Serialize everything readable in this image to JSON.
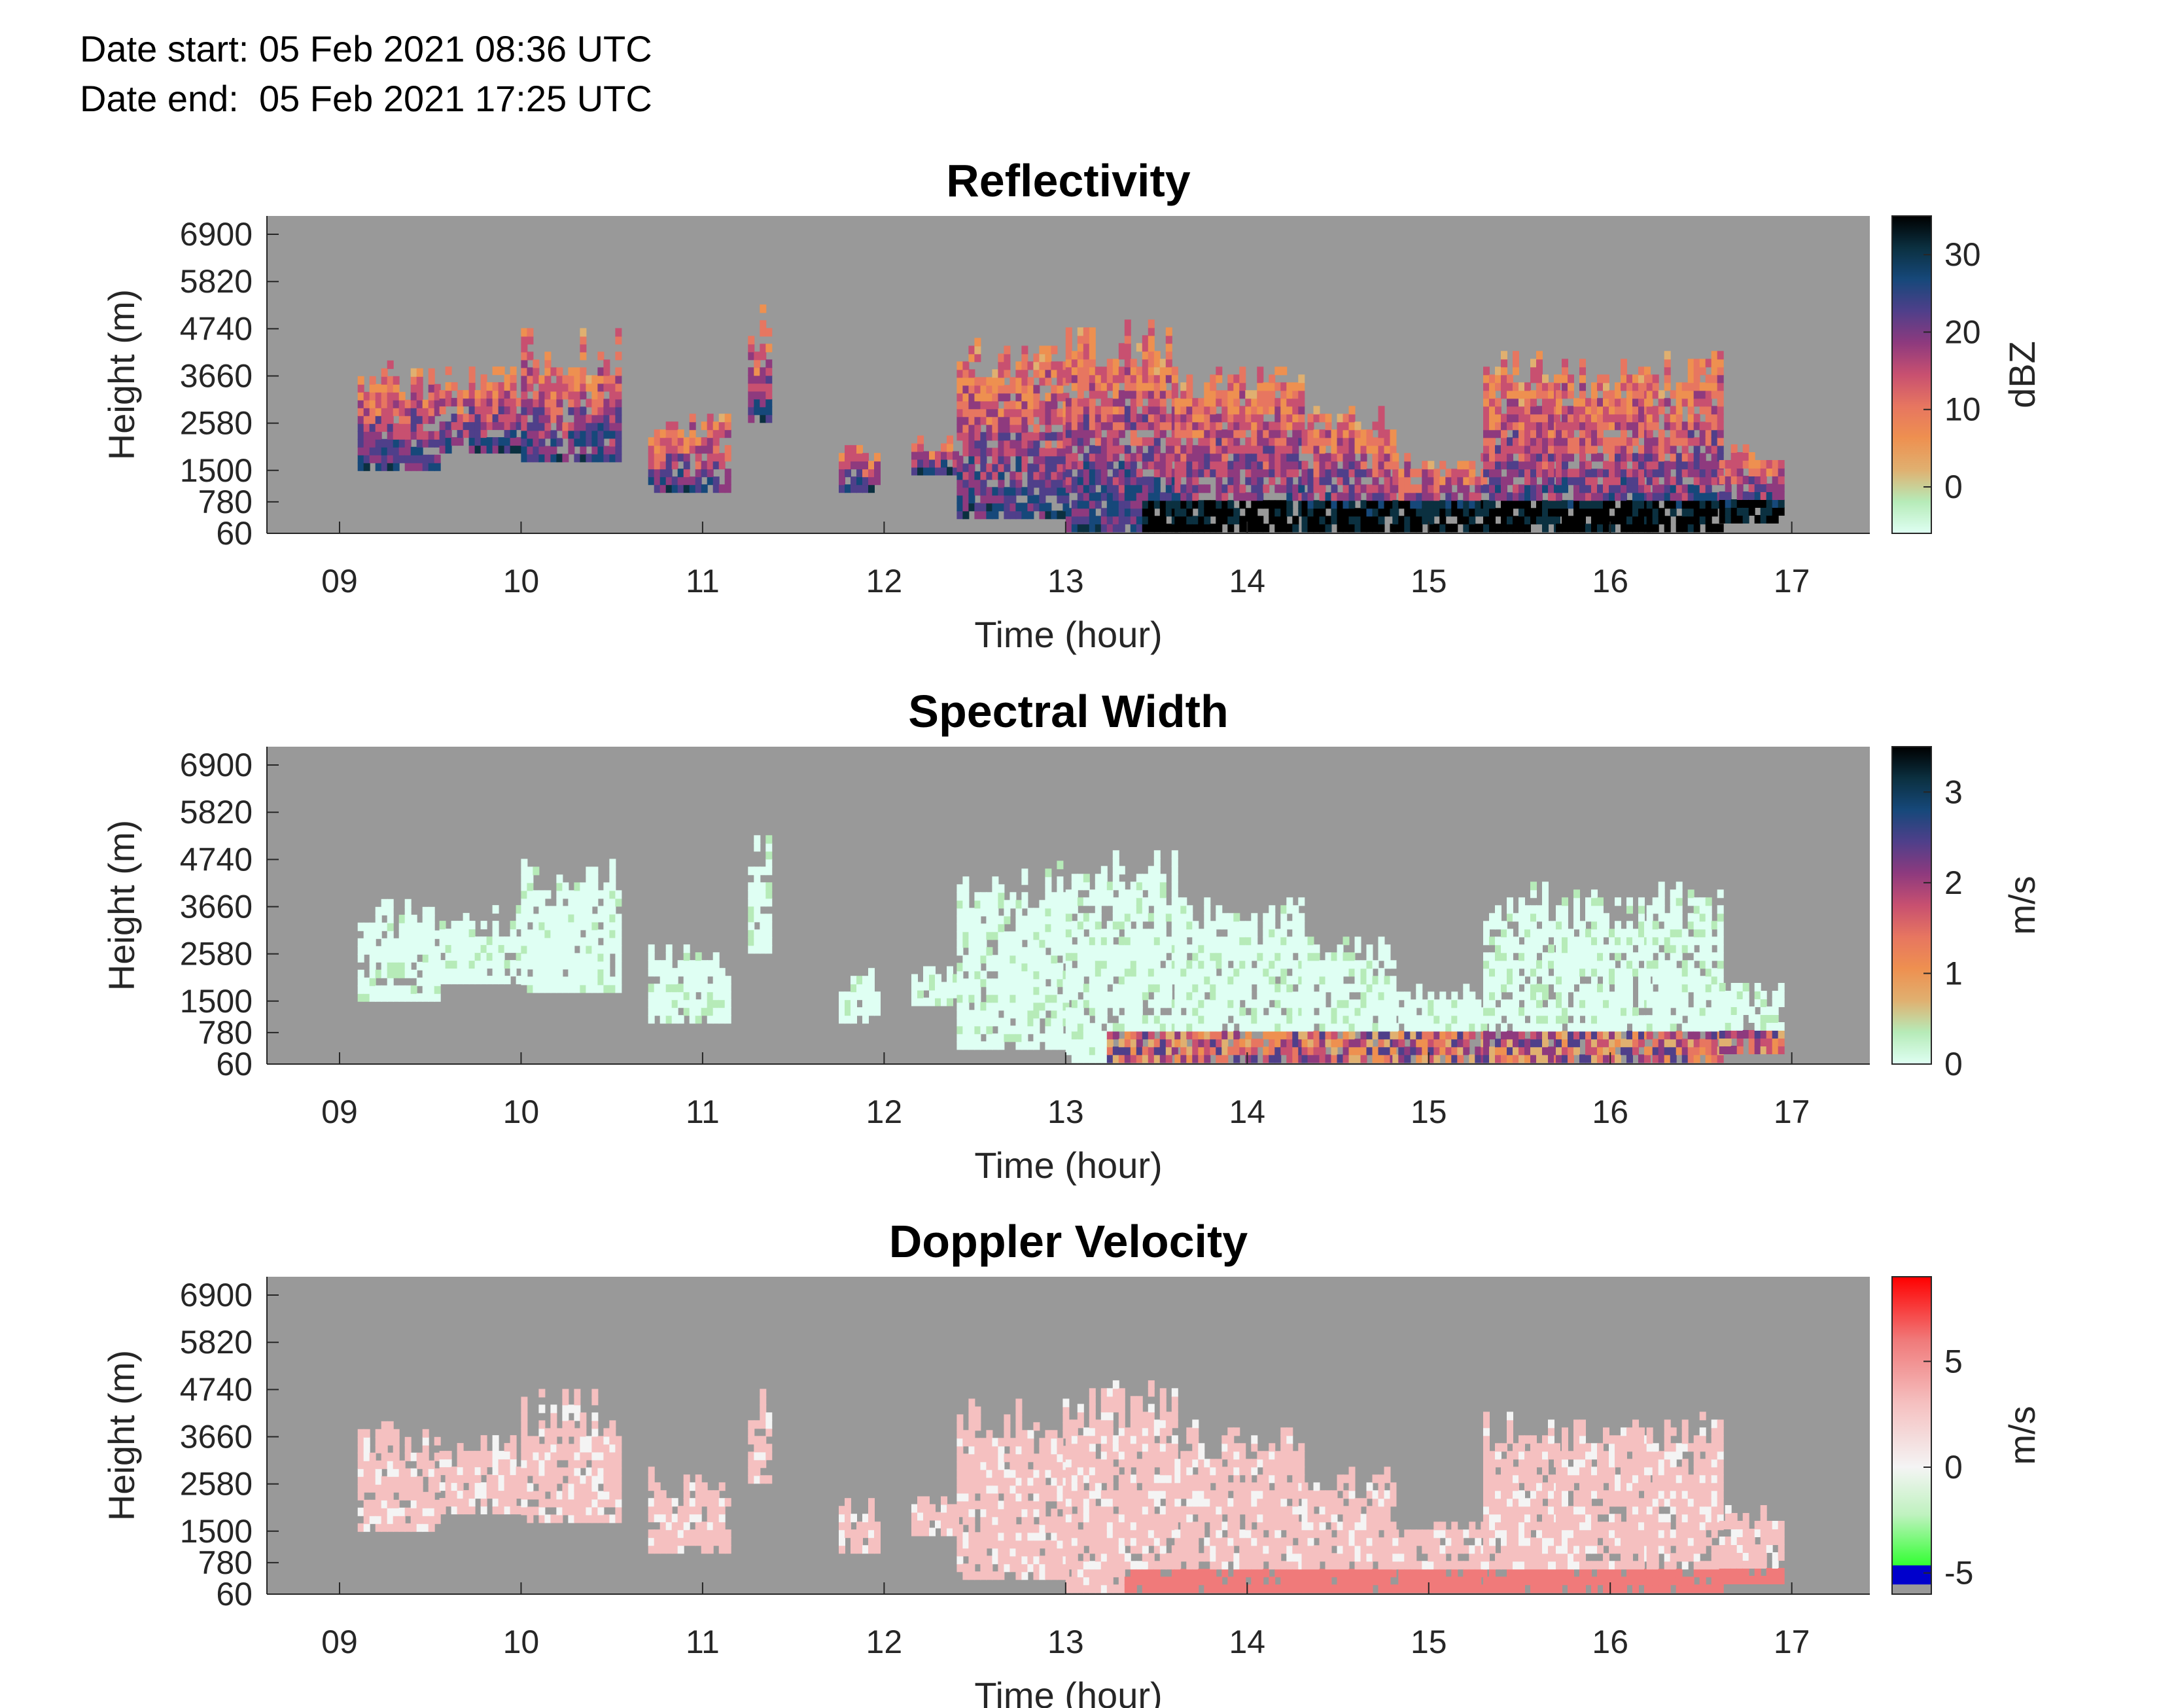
{
  "header": {
    "date_start": "Date start: 05 Feb 2021 08:36 UTC",
    "date_end": "Date end:  05 Feb 2021 17:25 UTC"
  },
  "chart_data": [
    {
      "type": "heatmap",
      "title": "Reflectivity",
      "xlabel": "Time (hour)",
      "ylabel": "Height (m)",
      "xlim": [
        8.6,
        17.43
      ],
      "x_ticks": [
        9,
        10,
        11,
        12,
        13,
        14,
        15,
        16,
        17
      ],
      "x_tick_labels": [
        "09",
        "10",
        "11",
        "12",
        "13",
        "14",
        "15",
        "16",
        "17"
      ],
      "ylim": [
        60,
        7320
      ],
      "y_ticks": [
        60,
        780,
        1500,
        2580,
        3660,
        4740,
        5820,
        6900
      ],
      "y_tick_labels": [
        "60",
        "780",
        "1500",
        "2580",
        "3660",
        "4740",
        "5820",
        "6900"
      ],
      "colorbar": {
        "label": "dBZ",
        "range": [
          -6,
          35
        ],
        "ticks": [
          0,
          10,
          20,
          30
        ],
        "tick_labels": [
          "0",
          "10",
          "20",
          "30"
        ],
        "colormap": [
          "#dffff3",
          "#b6ebb8",
          "#e0b070",
          "#ee9050",
          "#e77660",
          "#c85070",
          "#8e3a7e",
          "#4f3f8a",
          "#16487a",
          "#0b3040",
          "#000000"
        ]
      },
      "background_color": "#999999"
    },
    {
      "type": "heatmap",
      "title": "Spectral Width",
      "xlabel": "Time (hour)",
      "ylabel": "Height (m)",
      "xlim": [
        8.6,
        17.43
      ],
      "x_ticks": [
        9,
        10,
        11,
        12,
        13,
        14,
        15,
        16,
        17
      ],
      "x_tick_labels": [
        "09",
        "10",
        "11",
        "12",
        "13",
        "14",
        "15",
        "16",
        "17"
      ],
      "ylim": [
        60,
        7320
      ],
      "y_ticks": [
        60,
        780,
        1500,
        2580,
        3660,
        4740,
        5820,
        6900
      ],
      "y_tick_labels": [
        "60",
        "780",
        "1500",
        "2580",
        "3660",
        "4740",
        "5820",
        "6900"
      ],
      "colorbar": {
        "label": "m/s",
        "range": [
          0,
          3.5
        ],
        "ticks": [
          0,
          1,
          2,
          3
        ],
        "tick_labels": [
          "0",
          "1",
          "2",
          "3"
        ],
        "colormap": [
          "#dffff3",
          "#b6ebb8",
          "#e0b070",
          "#ee9050",
          "#e77660",
          "#c85070",
          "#8e3a7e",
          "#4f3f8a",
          "#16487a",
          "#0b3040",
          "#000000"
        ]
      },
      "background_color": "#999999"
    },
    {
      "type": "heatmap",
      "title": "Doppler Velocity",
      "xlabel": "Time (hour)",
      "ylabel": "Height (m)",
      "xlim": [
        8.6,
        17.43
      ],
      "x_ticks": [
        9,
        10,
        11,
        12,
        13,
        14,
        15,
        16,
        17
      ],
      "x_tick_labels": [
        "09",
        "10",
        "11",
        "12",
        "13",
        "14",
        "15",
        "16",
        "17"
      ],
      "ylim": [
        60,
        7320
      ],
      "y_ticks": [
        60,
        780,
        1500,
        2580,
        3660,
        4740,
        5820,
        6900
      ],
      "y_tick_labels": [
        "60",
        "780",
        "1500",
        "2580",
        "3660",
        "4740",
        "5820",
        "6900"
      ],
      "colorbar": {
        "label": "m/s",
        "range": [
          -6,
          9
        ],
        "ticks": [
          -5,
          0,
          5
        ],
        "tick_labels": [
          "-5",
          "0",
          "5"
        ],
        "colormap": [
          "#999999",
          "#0000cc",
          "#33ff33",
          "#bff2bf",
          "#f4f4f4",
          "#f5c0c0",
          "#f07a7a",
          "#ff0000"
        ]
      },
      "background_color": "#999999"
    }
  ]
}
